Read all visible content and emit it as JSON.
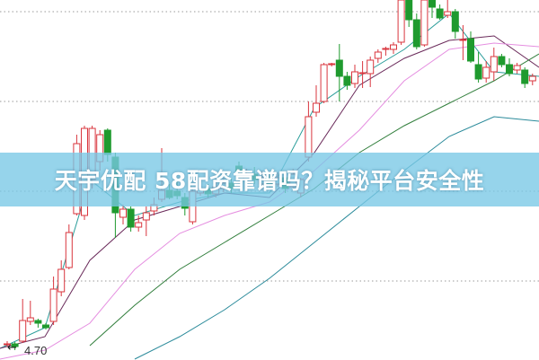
{
  "title": "天宇优配 58配资靠谱吗？揭秘平台安全性",
  "colors": {
    "up": "#d9363e",
    "down": "#1f9a2e",
    "banner": "#78c8e6",
    "grid": "#999999"
  },
  "chart_data": {
    "type": "candlestick",
    "title": "天宇优配 58配资靠谱吗？揭秘平台安全性",
    "ylim": [
      4.59,
      8.6
    ],
    "grid": true,
    "low_marker": {
      "label": "4.70",
      "value": 4.7,
      "arrow_icon": "left-arrow-icon"
    },
    "candles_ohlc": [
      [
        4.77,
        4.8,
        4.74,
        4.77
      ],
      [
        4.77,
        4.79,
        4.7,
        4.74
      ],
      [
        4.8,
        5.27,
        4.78,
        5.03
      ],
      [
        5.02,
        5.25,
        4.98,
        5.06
      ],
      [
        5.03,
        5.05,
        4.95,
        5.0
      ],
      [
        4.98,
        5.0,
        4.93,
        4.95
      ],
      [
        5.02,
        5.52,
        4.98,
        5.38
      ],
      [
        5.35,
        5.7,
        5.3,
        5.6
      ],
      [
        5.62,
        6.1,
        5.6,
        6.01
      ],
      [
        6.22,
        7.1,
        6.2,
        7.0
      ],
      [
        6.2,
        7.2,
        6.15,
        7.17
      ],
      [
        6.6,
        7.2,
        6.5,
        7.17
      ],
      [
        6.8,
        7.15,
        6.7,
        7.1
      ],
      [
        7.15,
        7.17,
        6.8,
        6.88
      ],
      [
        6.85,
        6.9,
        5.95,
        6.23
      ],
      [
        6.18,
        6.32,
        6.1,
        6.27
      ],
      [
        6.27,
        6.3,
        6.02,
        6.07
      ],
      [
        6.07,
        6.2,
        6.02,
        6.12
      ],
      [
        6.15,
        6.3,
        5.97,
        6.23
      ],
      [
        6.25,
        6.4,
        6.2,
        6.32
      ],
      [
        6.38,
        6.95,
        6.35,
        6.48
      ],
      [
        6.48,
        6.55,
        6.38,
        6.4
      ],
      [
        6.47,
        6.6,
        6.38,
        6.42
      ],
      [
        6.4,
        6.45,
        6.2,
        6.28
      ],
      [
        6.13,
        6.5,
        6.1,
        6.47
      ],
      [
        6.45,
        6.55,
        6.42,
        6.5
      ],
      [
        6.5,
        6.55,
        6.4,
        6.44
      ],
      [
        6.44,
        6.6,
        6.4,
        6.52
      ],
      [
        6.5,
        6.62,
        6.46,
        6.56
      ],
      [
        6.56,
        6.62,
        6.45,
        6.5
      ],
      [
        6.75,
        6.8,
        6.62,
        6.68
      ],
      [
        6.6,
        6.72,
        6.55,
        6.66
      ],
      [
        6.66,
        6.74,
        6.55,
        6.6
      ],
      [
        6.55,
        6.7,
        6.48,
        6.62
      ],
      [
        6.62,
        6.68,
        6.5,
        6.55
      ],
      [
        6.55,
        6.68,
        6.52,
        6.62
      ],
      [
        6.62,
        6.66,
        6.45,
        6.5
      ],
      [
        6.52,
        6.72,
        6.48,
        6.66
      ],
      [
        6.45,
        6.62,
        6.4,
        6.6
      ],
      [
        6.85,
        7.47,
        6.8,
        7.3
      ],
      [
        7.35,
        7.65,
        7.3,
        7.45
      ],
      [
        7.47,
        7.9,
        7.45,
        7.88
      ],
      [
        7.88,
        7.9,
        7.86,
        7.89
      ],
      [
        7.93,
        8.11,
        7.47,
        7.75
      ],
      [
        7.75,
        7.8,
        7.6,
        7.65
      ],
      [
        7.67,
        7.88,
        7.62,
        7.8
      ],
      [
        7.79,
        7.92,
        7.62,
        7.79
      ],
      [
        7.78,
        7.97,
        7.63,
        7.93
      ],
      [
        7.95,
        8.05,
        7.9,
        8.02
      ],
      [
        8.05,
        8.08,
        7.98,
        8.06
      ],
      [
        8.05,
        8.13,
        8.0,
        8.1
      ],
      [
        8.13,
        8.6,
        8.1,
        8.6
      ],
      [
        8.6,
        8.6,
        8.3,
        8.38
      ],
      [
        8.38,
        8.45,
        8.05,
        8.08
      ],
      [
        8.1,
        8.6,
        8.08,
        8.6
      ],
      [
        8.6,
        8.6,
        8.4,
        8.52
      ],
      [
        8.5,
        8.55,
        8.38,
        8.4
      ],
      [
        8.43,
        8.6,
        8.4,
        8.47
      ],
      [
        8.47,
        8.5,
        8.17,
        8.25
      ],
      [
        8.15,
        8.32,
        7.93,
        8.16
      ],
      [
        8.17,
        8.25,
        7.9,
        7.92
      ],
      [
        7.88,
        8.02,
        7.68,
        7.72
      ],
      [
        7.73,
        7.92,
        7.68,
        7.85
      ],
      [
        7.8,
        8.07,
        7.7,
        7.97
      ],
      [
        7.97,
        8.0,
        7.85,
        7.88
      ],
      [
        7.88,
        7.95,
        7.75,
        7.78
      ],
      [
        7.82,
        7.9,
        7.78,
        7.87
      ],
      [
        7.82,
        7.85,
        7.62,
        7.67
      ],
      [
        7.7,
        7.78,
        7.65,
        7.75
      ]
    ],
    "moving_averages": [
      {
        "color": "#2a9d9a",
        "values": [
          4.72,
          4.95,
          6.6,
          6.2,
          6.35,
          6.45,
          6.45,
          7.4,
          7.75,
          8.05,
          8.45,
          7.8,
          7.75
        ]
      },
      {
        "color": "#6a2a5a",
        "values": [
          4.72,
          4.85,
          5.7,
          6.15,
          6.3,
          6.45,
          6.4,
          6.9,
          7.65,
          7.95,
          8.15,
          8.2,
          7.85
        ]
      },
      {
        "color": "#e58ee0",
        "values": [
          4.6,
          4.7,
          5.0,
          5.6,
          6.0,
          6.2,
          6.35,
          6.7,
          7.15,
          7.7,
          8.05,
          8.12,
          8.08
        ]
      },
      {
        "color": "#2f7d3a",
        "values": [
          null,
          null,
          4.75,
          5.2,
          5.6,
          5.9,
          6.2,
          6.5,
          6.9,
          7.2,
          7.45,
          7.7,
          8.0
        ]
      },
      {
        "color": "#2a8a9a",
        "values": [
          null,
          null,
          null,
          4.6,
          4.85,
          5.15,
          5.5,
          5.9,
          6.3,
          6.7,
          7.08,
          7.3,
          7.25
        ]
      }
    ]
  }
}
